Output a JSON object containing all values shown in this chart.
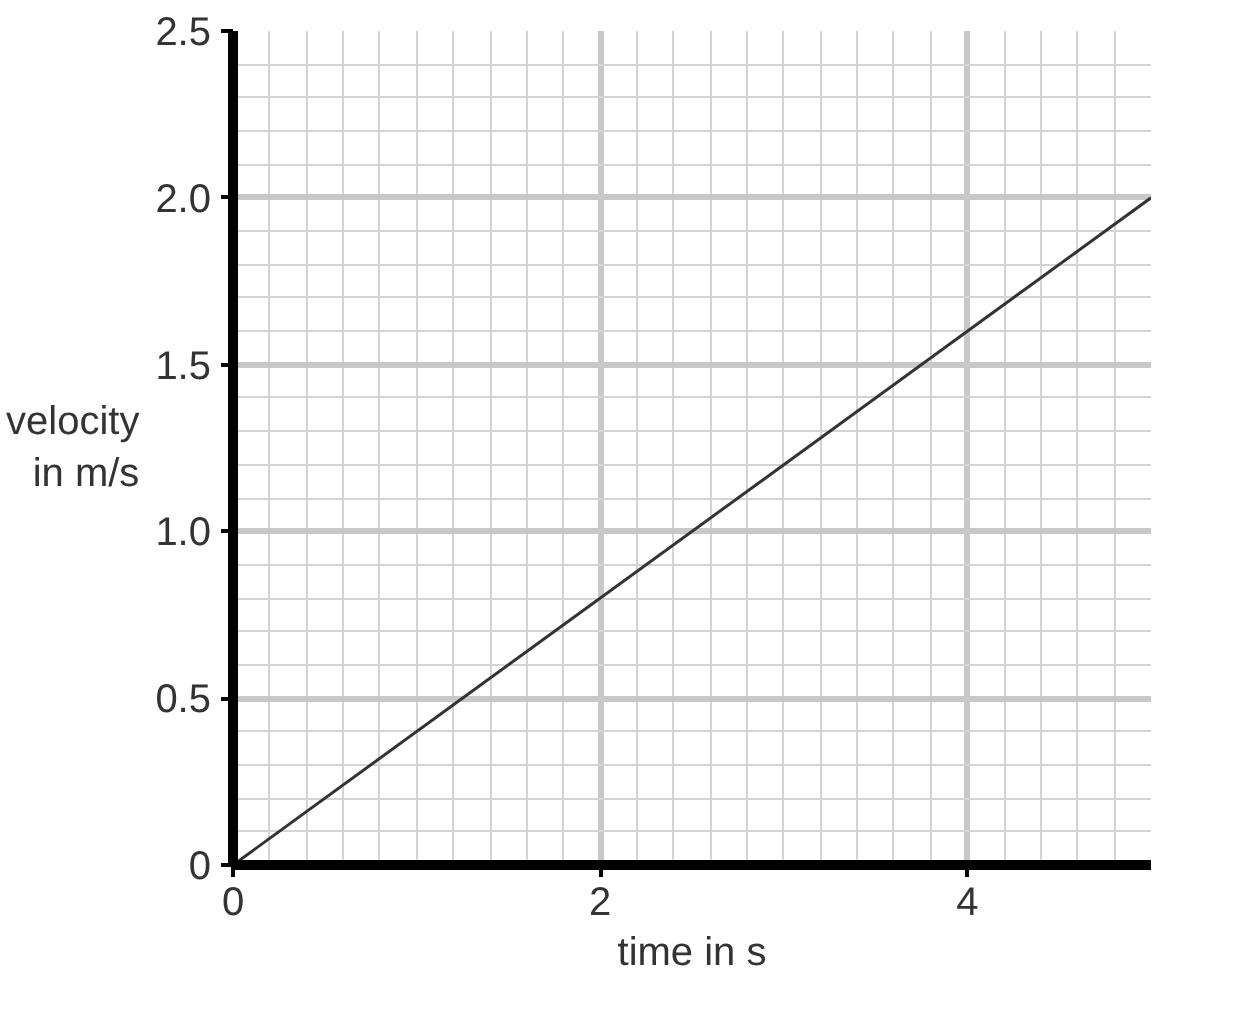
{
  "chart_data": {
    "type": "line",
    "xlabel": "time in s",
    "ylabel": "velocity in m/s",
    "x": [
      0,
      5
    ],
    "series": [
      {
        "color": "#333333",
        "values": [
          0,
          2.0
        ]
      }
    ],
    "xlim": [
      0,
      5
    ],
    "ylim": [
      0,
      2.5
    ],
    "xticks": [
      0,
      2,
      4
    ],
    "yticks": [
      0,
      {
        "value": 0.5,
        "label": "0.5"
      },
      {
        "value": 1.0,
        "label": "1.0"
      },
      {
        "value": 1.5,
        "label": "1.5"
      },
      {
        "value": 2.0,
        "label": "2.0"
      },
      {
        "value": 2.5,
        "label": "2.5"
      }
    ],
    "grid": true,
    "line_style": "solid",
    "marker": "none"
  }
}
